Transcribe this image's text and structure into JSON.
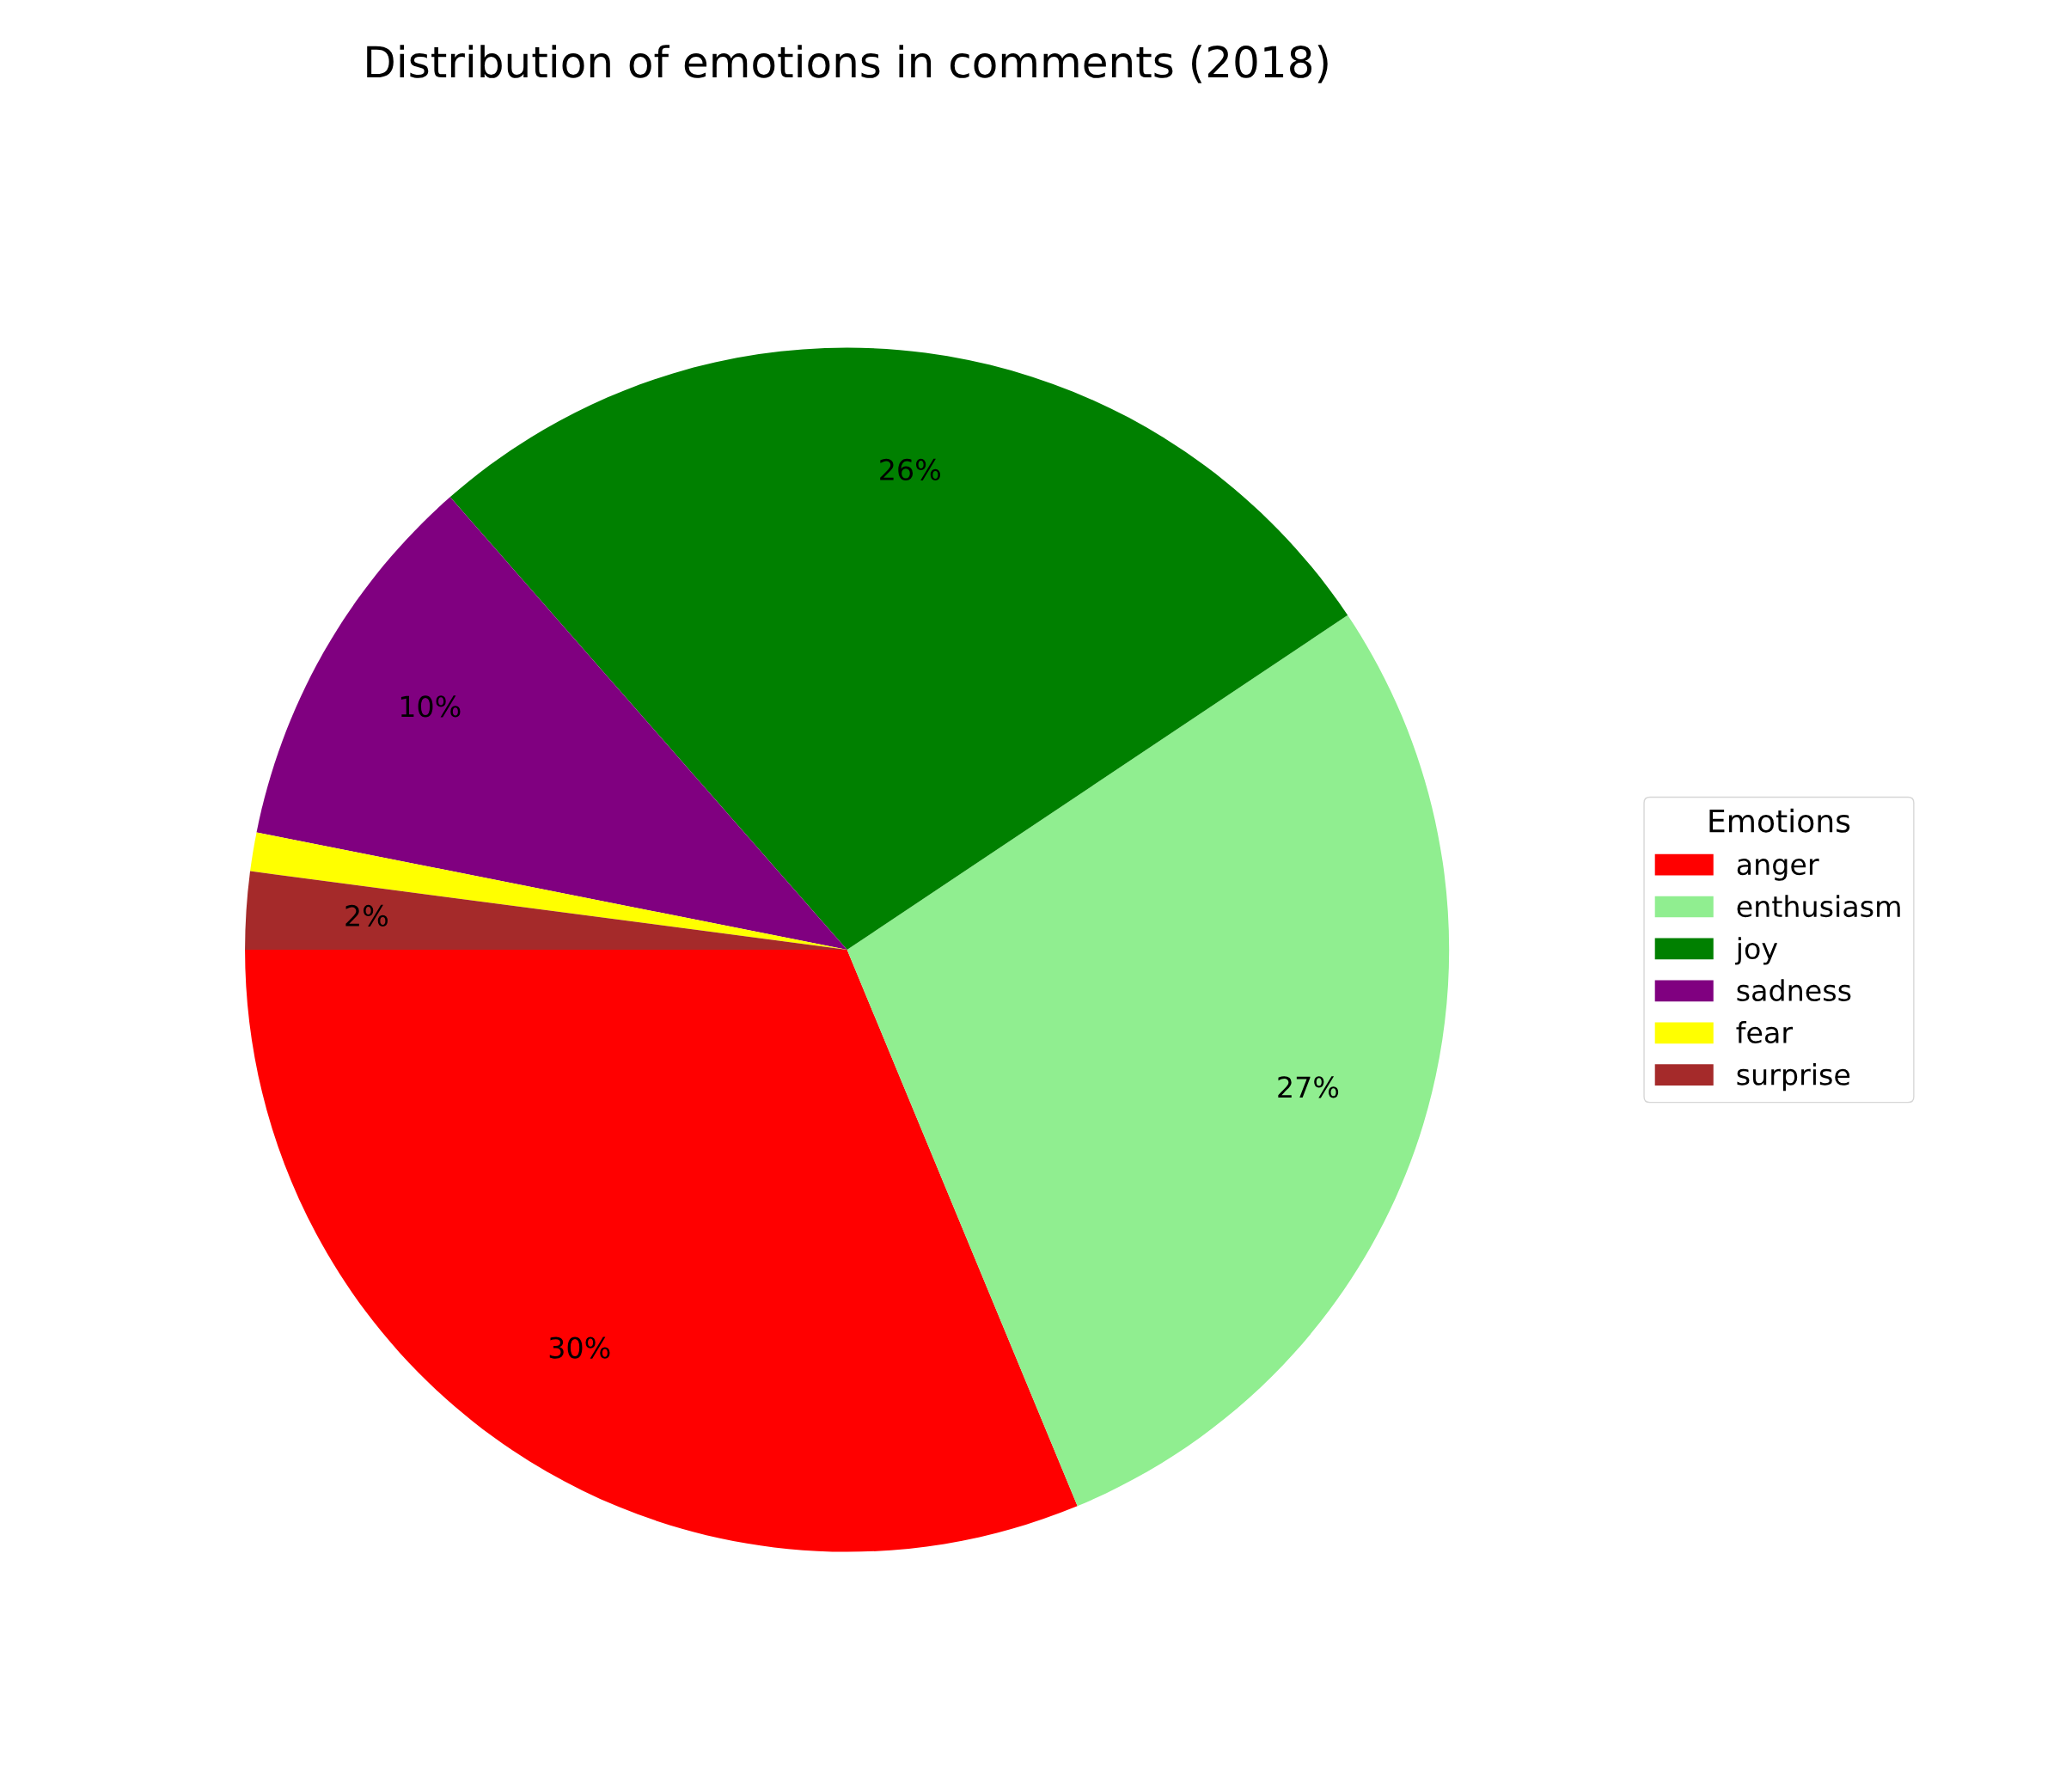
{
  "chart_data": {
    "type": "pie",
    "title": "Distribution of emotions in comments (2018)",
    "legend_title": "Emotions",
    "legend": "right",
    "categories": [
      "anger",
      "enthusiasm",
      "joy",
      "sadness",
      "fear",
      "surprise"
    ],
    "values": [
      30,
      27,
      26,
      10,
      1,
      2
    ],
    "value_labels": [
      "30%",
      "27%",
      "26%",
      "10%",
      null,
      "2%"
    ],
    "colors": [
      "#ff0000",
      "#90ee90",
      "#008000",
      "#800080",
      "#ffff00",
      "#a52a2a"
    ]
  }
}
